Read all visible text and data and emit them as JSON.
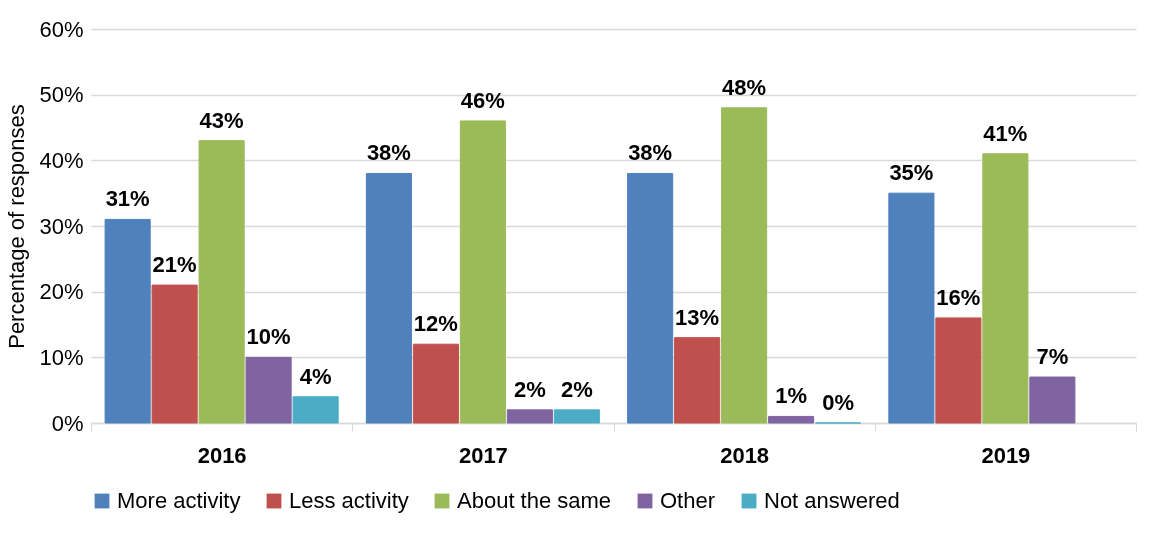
{
  "chart_data": {
    "type": "bar",
    "ylabel": "Percentage of responses",
    "categories": [
      "2016",
      "2017",
      "2018",
      "2019"
    ],
    "series": [
      {
        "name": "More activity",
        "color": "#4f81bd",
        "values": [
          31,
          38,
          38,
          35
        ],
        "value_labels": [
          "31%",
          "38%",
          "38%",
          "35%"
        ]
      },
      {
        "name": "Less activity",
        "color": "#c0504d",
        "values": [
          21,
          12,
          13,
          16
        ],
        "value_labels": [
          "21%",
          "12%",
          "13%",
          "16%"
        ]
      },
      {
        "name": "About the same",
        "color": "#9bbb59",
        "values": [
          43,
          46,
          48,
          41
        ],
        "value_labels": [
          "43%",
          "46%",
          "48%",
          "41%"
        ]
      },
      {
        "name": "Other",
        "color": "#8064a2",
        "values": [
          10,
          2,
          1,
          7
        ],
        "value_labels": [
          "10%",
          "2%",
          "1%",
          "7%"
        ]
      },
      {
        "name": "Not answered",
        "color": "#4bacc6",
        "values": [
          4,
          2,
          0,
          null
        ],
        "value_labels": [
          "4%",
          "2%",
          "0%",
          null
        ]
      }
    ],
    "ylim": [
      0,
      60
    ],
    "yticks": [
      {
        "value": 0,
        "label": "0%"
      },
      {
        "value": 10,
        "label": "10%"
      },
      {
        "value": 20,
        "label": "20%"
      },
      {
        "value": 30,
        "label": "30%"
      },
      {
        "value": 40,
        "label": "40%"
      },
      {
        "value": 50,
        "label": "50%"
      },
      {
        "value": 60,
        "label": "60%"
      }
    ],
    "grid": "y",
    "legend": "bottom",
    "data_labels": true
  }
}
